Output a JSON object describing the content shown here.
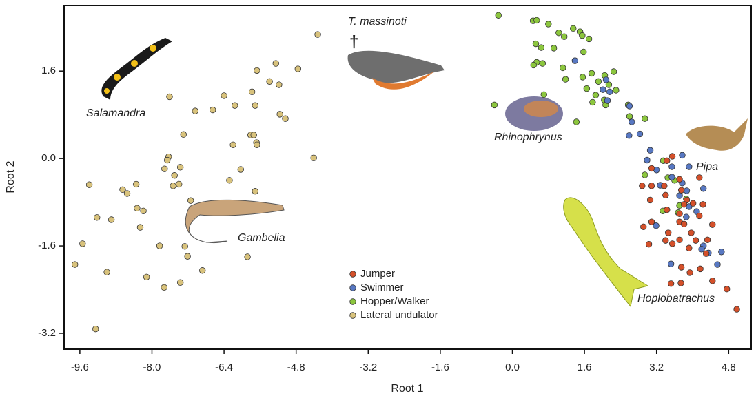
{
  "chart_data": {
    "type": "scatter",
    "x_label": "Root 1",
    "y_label": "Root 2",
    "xlim": [
      -9.95,
      5.3
    ],
    "ylim": [
      -3.49,
      2.8
    ],
    "xticks": [
      -9.6,
      {
        "value": -8,
        "label": "-8.0"
      },
      -6.4,
      -4.8,
      -3.2,
      -1.6,
      {
        "value": 0,
        "label": "0.0"
      },
      1.6,
      3.2,
      4.8
    ],
    "yticks": [
      1.6,
      {
        "value": 0,
        "label": "0.0"
      },
      -1.6,
      -3.2
    ],
    "legend": "lower-center",
    "annotations": [
      "Salamandra",
      "T. massinoti",
      "†",
      "Rhinophrynus",
      "Pipa",
      "Gambelia",
      "Hoplobatrachus"
    ],
    "series": [
      {
        "name": "Jumper",
        "color": "#d4502a",
        "x": [
          3.43,
          3.55,
          3.09,
          4.15,
          2.88,
          3.09,
          3.37,
          3.71,
          3.4,
          3.75,
          3.87,
          3.06,
          3.81,
          4.01,
          4.23,
          3.43,
          3.71,
          4.15,
          3.09,
          3.71,
          3.81,
          4.44,
          2.91,
          3.46,
          3.97,
          3.4,
          3.71,
          4.33,
          3.03,
          3.55,
          3.92,
          4.07,
          4.3,
          3.75,
          3.94,
          4.17,
          3.52,
          3.74,
          4.44,
          4.76,
          4.98
        ],
        "values": [
          -0.04,
          0.04,
          -0.18,
          -0.35,
          -0.5,
          -0.5,
          -0.5,
          -0.38,
          -0.67,
          -0.58,
          -0.76,
          -0.76,
          -0.84,
          -0.82,
          -0.84,
          -0.94,
          -1.01,
          -1.05,
          -1.16,
          -1.16,
          -1.2,
          -1.21,
          -1.25,
          -1.36,
          -1.36,
          -1.5,
          -1.49,
          -1.49,
          -1.57,
          -1.56,
          -1.64,
          -1.5,
          -1.74,
          -1.99,
          -2.09,
          -2.02,
          -2.29,
          -2.28,
          -2.24,
          -2.39,
          -2.76
        ]
      },
      {
        "name": "Swimmer",
        "color": "#5878c2",
        "x": [
          1.39,
          2.08,
          2.01,
          2.16,
          2.11,
          2.6,
          2.65,
          2.59,
          2.83,
          3.06,
          2.99,
          3.2,
          3.77,
          3.28,
          3.54,
          3.54,
          3.92,
          3.77,
          3.87,
          3.71,
          3.92,
          3.86,
          4.09,
          4.24,
          3.19,
          4.24,
          4.2,
          4.35,
          4.64,
          4.55,
          3.52
        ],
        "values": [
          1.79,
          1.44,
          1.26,
          1.22,
          1.06,
          0.96,
          0.67,
          0.42,
          0.45,
          0.15,
          -0.03,
          -0.21,
          0.06,
          -0.49,
          -0.34,
          -0.15,
          -0.15,
          -0.45,
          -0.59,
          -0.68,
          -0.88,
          -1.07,
          -0.97,
          -0.55,
          -1.23,
          -1.6,
          -1.66,
          -1.73,
          -1.71,
          -1.94,
          -1.93
        ]
      },
      {
        "name": "Hopper/Walker",
        "color": "#8cc63e",
        "x": [
          -0.31,
          0.46,
          0.54,
          0.8,
          1.35,
          1.03,
          1.5,
          1.55,
          1.7,
          1.15,
          0.52,
          0.92,
          0.64,
          1.58,
          0.54,
          0.67,
          0.47,
          1.12,
          1.18,
          1.56,
          1.76,
          2.05,
          2.25,
          1.91,
          1.65,
          2.3,
          2.14,
          1.85,
          2.04,
          1.78,
          2.07,
          0.7,
          -0.4,
          1.42,
          2.94,
          2.57,
          3.35,
          2.94,
          3.45,
          3.6,
          3.71,
          3.34,
          3.68,
          3.86,
          2.6
        ],
        "values": [
          2.62,
          2.52,
          2.53,
          2.46,
          2.38,
          2.3,
          2.32,
          2.25,
          2.19,
          2.23,
          2.1,
          2.02,
          2.03,
          1.95,
          1.76,
          1.74,
          1.71,
          1.66,
          1.45,
          1.49,
          1.56,
          1.52,
          1.59,
          1.41,
          1.28,
          1.25,
          1.35,
          1.16,
          1.07,
          1.03,
          0.98,
          1.17,
          0.98,
          0.67,
          0.73,
          0.98,
          -0.04,
          -0.3,
          -0.35,
          -0.4,
          -0.86,
          -0.96,
          -0.99,
          -0.74,
          0.77
        ]
      },
      {
        "name": "Lateral undulator",
        "color": "#d8c27c",
        "x": [
          -4.32,
          -5.25,
          -4.76,
          -5.67,
          -5.39,
          -5.18,
          -5.78,
          -6.4,
          -7.61,
          -6.16,
          -6.65,
          -7.04,
          -5.71,
          -5.16,
          -5.04,
          -7.3,
          -5.81,
          -5.74,
          -6.2,
          -5.68,
          -5.67,
          -4.41,
          -7.63,
          -7.66,
          -7.37,
          -7.72,
          -7.5,
          -6.03,
          -6.28,
          -7.4,
          -7.53,
          -9.39,
          -8.35,
          -8.65,
          -8.55,
          -5.71,
          -7.14,
          -8.33,
          -8.19,
          -9.22,
          -8.9,
          -8.26,
          -9.54,
          -7.83,
          -7.27,
          -7.21,
          -5.88,
          -9.71,
          -6.88,
          -9.0,
          -8.12,
          -7.37,
          -7.73,
          -9.25
        ],
        "values": [
          2.27,
          1.74,
          1.64,
          1.61,
          1.41,
          1.35,
          1.22,
          1.15,
          1.13,
          0.97,
          0.89,
          0.87,
          0.97,
          0.81,
          0.73,
          0.44,
          0.43,
          0.43,
          0.25,
          0.29,
          0.25,
          0.01,
          0.03,
          -0.03,
          -0.16,
          -0.19,
          -0.31,
          -0.2,
          -0.4,
          -0.47,
          -0.5,
          -0.48,
          -0.47,
          -0.57,
          -0.64,
          -0.6,
          -0.77,
          -0.91,
          -0.96,
          -1.08,
          -1.12,
          -1.26,
          -1.56,
          -1.6,
          -1.61,
          -1.79,
          -1.8,
          -1.94,
          -2.05,
          -2.08,
          -2.17,
          -2.27,
          -2.36,
          -3.12
        ]
      }
    ]
  }
}
